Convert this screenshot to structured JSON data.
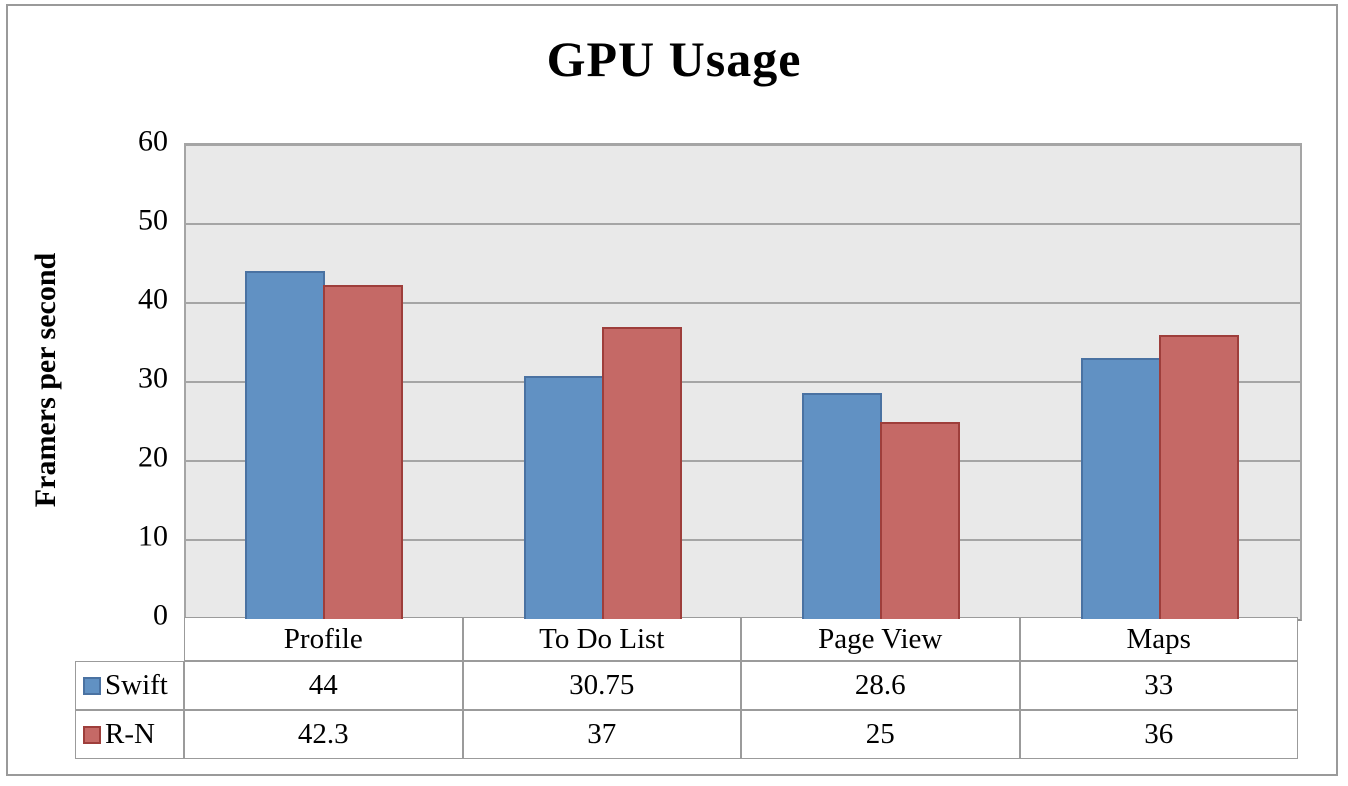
{
  "frame": {
    "border_color": "#9a9a9a"
  },
  "chart_data": {
    "type": "bar",
    "title": "GPU Usage",
    "ylabel": "Framers per second",
    "xlabel": "",
    "categories": [
      "Profile",
      "To Do List",
      "Page View",
      "Maps"
    ],
    "series": [
      {
        "name": "Swift",
        "values": [
          44,
          30.75,
          28.6,
          33
        ],
        "fill": "#6191c3",
        "border": "#4a72a2"
      },
      {
        "name": "R-N",
        "values": [
          42.3,
          37,
          25,
          36
        ],
        "fill": "#c56966",
        "border": "#9e3e3b"
      }
    ],
    "ylim": [
      0,
      60
    ],
    "yticks": [
      0,
      10,
      20,
      30,
      40,
      50,
      60
    ],
    "grid": "horizontal-major",
    "plot_bg": "#e9e9e9",
    "gridline_color": "#a5a5a5",
    "legend_position": "data-table-left",
    "data_table_shown": true
  }
}
